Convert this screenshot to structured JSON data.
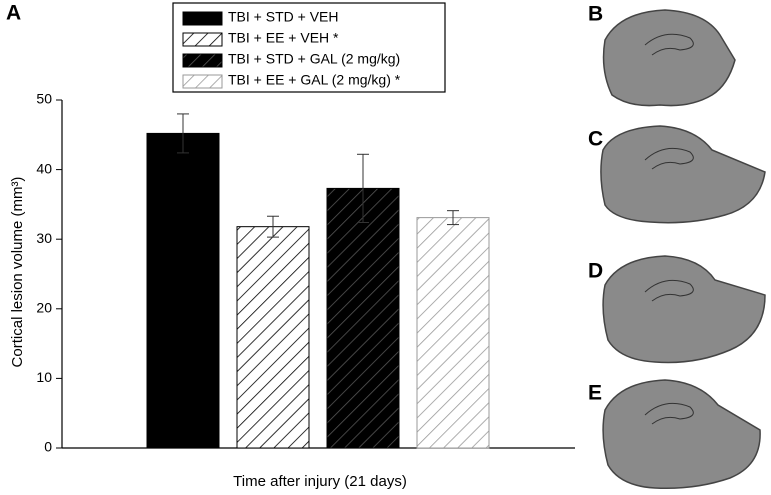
{
  "chart_data": {
    "type": "bar",
    "panel_label": "A",
    "xlabel": "Time after injury (21 days)",
    "ylabel": "Cortical lesion volume (mm³)",
    "categories": [
      null
    ],
    "series": [
      {
        "name": "TBI + STD + VEH",
        "color": "#000000",
        "hatch": null,
        "values": [
          45.2
        ],
        "errors": [
          2.8
        ]
      },
      {
        "name": "TBI + EE + VEH *",
        "color": "#ffffff",
        "hatch": "#000000",
        "values": [
          31.8
        ],
        "errors": [
          1.5
        ]
      },
      {
        "name": "TBI + STD + GAL (2 mg/kg)",
        "color": "#000000",
        "hatch": "#555555",
        "values": [
          37.3
        ],
        "errors": [
          4.9
        ]
      },
      {
        "name": "TBI + EE + GAL (2 mg/kg) *",
        "color": "#ffffff",
        "hatch": "#999999",
        "values": [
          33.1
        ],
        "errors": [
          1.0
        ]
      }
    ],
    "ylim": [
      0,
      50
    ],
    "yticks": [
      0,
      10,
      20,
      30,
      40,
      50
    ],
    "grid": false
  },
  "image_panels": [
    "B",
    "C",
    "D",
    "E"
  ]
}
